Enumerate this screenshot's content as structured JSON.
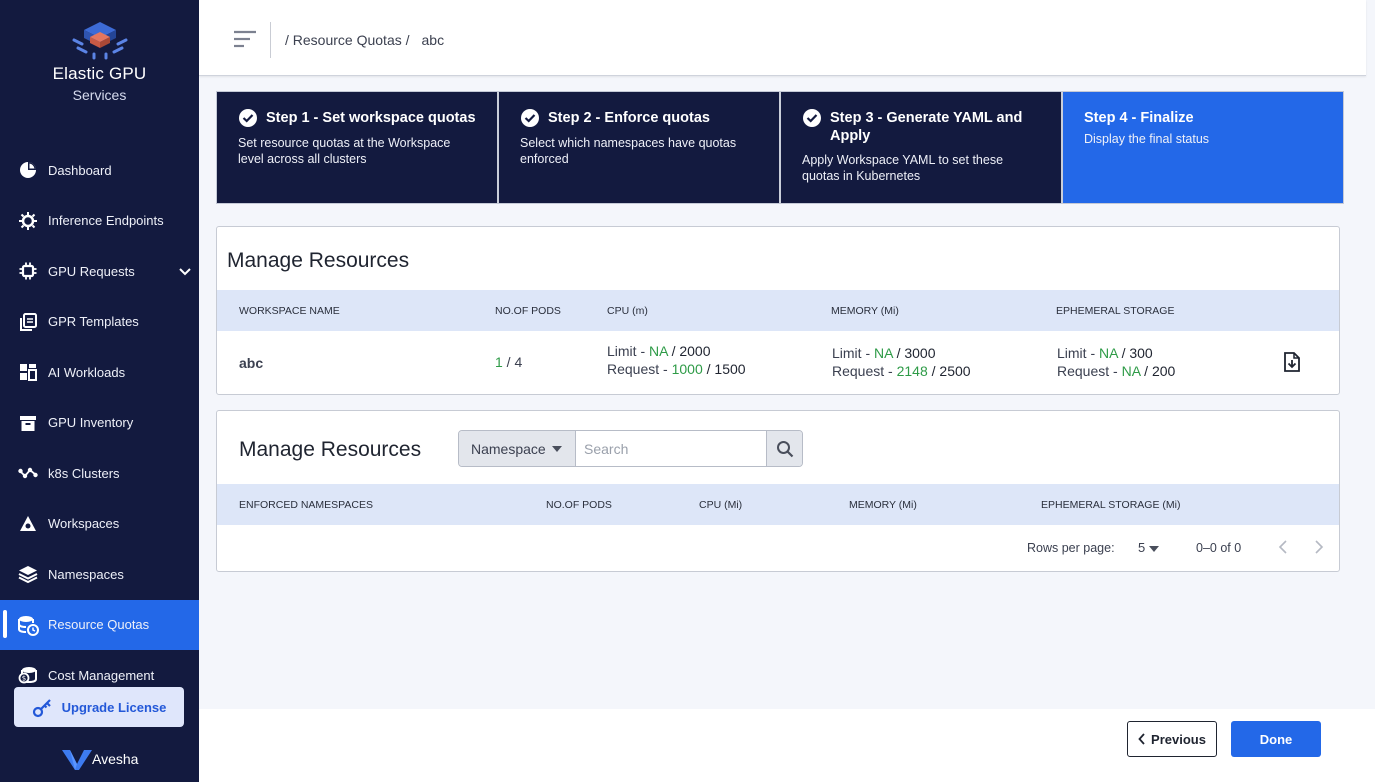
{
  "brand": {
    "title": "Elastic GPU",
    "subtitle": "Services",
    "vendor": "Avesha"
  },
  "sidebar": {
    "items": [
      {
        "label": "Dashboard",
        "icon": "pie-chart-icon"
      },
      {
        "label": "Inference Endpoints",
        "icon": "gear-chip-icon"
      },
      {
        "label": "GPU Requests",
        "icon": "chip-icon"
      },
      {
        "label": "GPR Templates",
        "icon": "copy-icon"
      },
      {
        "label": "AI Workloads",
        "icon": "grid-icon"
      },
      {
        "label": "GPU Inventory",
        "icon": "archive-icon"
      },
      {
        "label": "k8s Clusters",
        "icon": "network-icon"
      },
      {
        "label": "Workspaces",
        "icon": "workspace-icon"
      },
      {
        "label": "Namespaces",
        "icon": "layers-icon"
      },
      {
        "label": "Resource Quotas",
        "icon": "database-clock-icon",
        "active": true
      },
      {
        "label": "Cost Management",
        "icon": "coins-icon"
      }
    ],
    "upgrade_label": "Upgrade License"
  },
  "header": {
    "breadcrumb_path": "/ Resource Quotas /",
    "breadcrumb_current": "abc"
  },
  "stepper": [
    {
      "title": "Step 1 - Set workspace quotas",
      "desc": "Set resource quotas at the Workspace level across all clusters",
      "done": true
    },
    {
      "title": "Step 2 - Enforce quotas",
      "desc": "Select which namespaces have quotas enforced",
      "done": true
    },
    {
      "title": "Step 3 - Generate YAML and Apply",
      "desc": "Apply Workspace YAML to set these quotas in Kubernetes",
      "done": true
    },
    {
      "title": "Step 4 - Finalize",
      "desc": "Display the final status",
      "done": false
    }
  ],
  "workspace_card": {
    "title": "Manage Resources",
    "columns": [
      "WORKSPACE NAME",
      "NO.OF PODS",
      "CPU (m)",
      "MEMORY (Mi)",
      "EPHEMERAL STORAGE"
    ],
    "row": {
      "name": "abc",
      "pods_used": "1",
      "pods_sep": " / ",
      "pods_total": "4",
      "cpu": {
        "limit_label": "Limit - ",
        "limit_used": "NA",
        "limit_total": " / 2000",
        "request_label": "Request - ",
        "request_used": "1000",
        "request_total": " / 1500"
      },
      "memory": {
        "limit_label": "Limit - ",
        "limit_used": "NA",
        "limit_total": " / 3000",
        "request_label": "Request - ",
        "request_used": "2148",
        "request_total": " / 2500"
      },
      "storage": {
        "limit_label": "Limit - ",
        "limit_used": "NA",
        "limit_total": " / 300",
        "request_label": "Request - ",
        "request_used": "NA",
        "request_total": " / 200"
      }
    }
  },
  "namespace_card": {
    "title": "Manage Resources",
    "filter_label": "Namespace",
    "search_placeholder": "Search",
    "columns": [
      "ENFORCED NAMESPACES",
      "NO.OF PODS",
      "CPU (Mi)",
      "MEMORY (Mi)",
      "EPHEMERAL STORAGE (Mi)"
    ],
    "rows_per_page_label": "Rows per page:",
    "rows_per_page": "5",
    "range": "0–0 of 0"
  },
  "footer": {
    "previous_label": "Previous",
    "done_label": "Done"
  },
  "colors": {
    "sidebar_bg": "#131a3f",
    "accent": "#2368e8",
    "green": "#2e9b47"
  }
}
